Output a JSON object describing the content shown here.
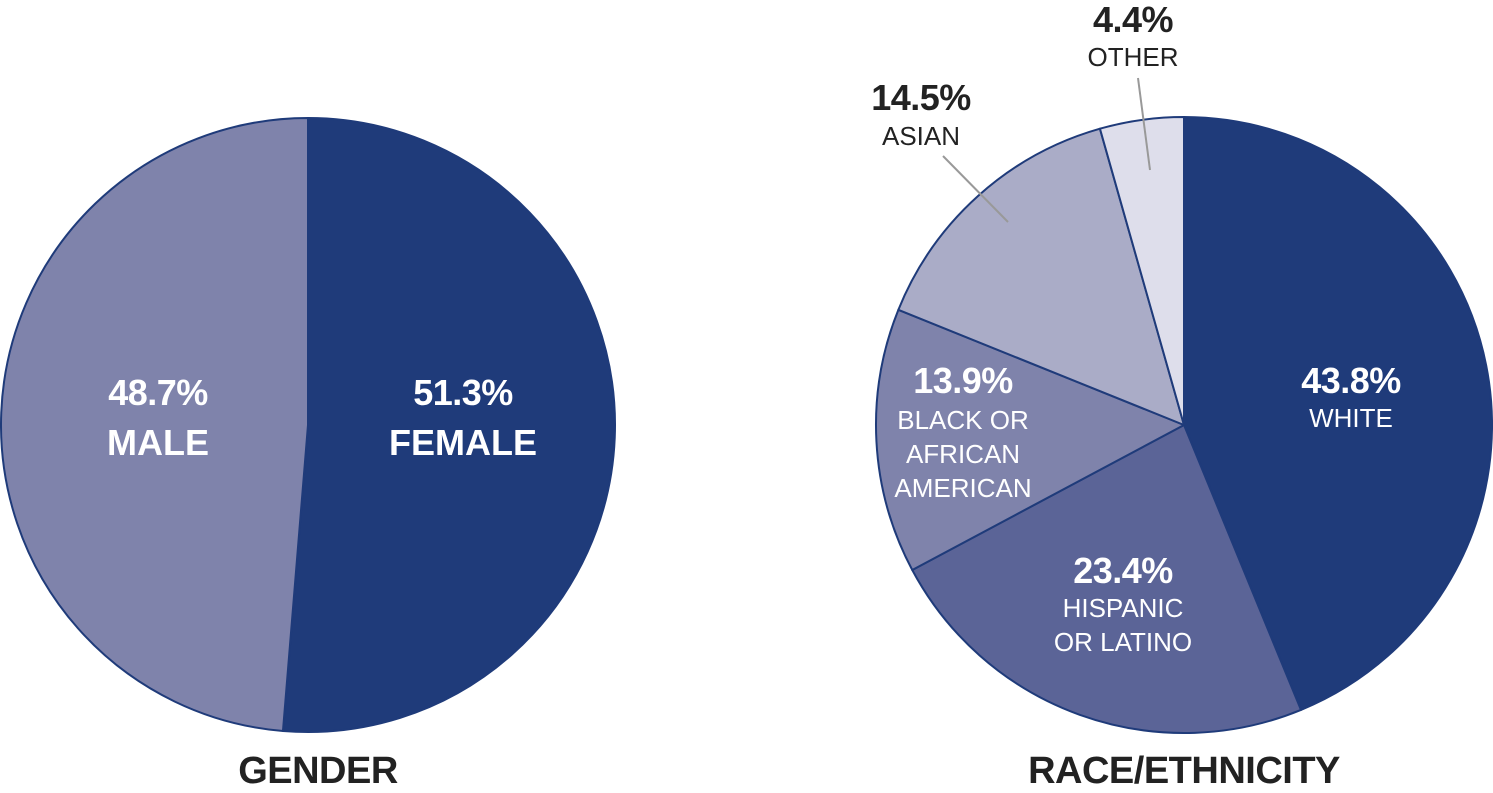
{
  "colors": {
    "edge": "#1f3b7a",
    "leader": "#999999",
    "text_light": "#ffffff",
    "text_dark": "#222222"
  },
  "chart_data": [
    {
      "type": "pie",
      "title": "GENDER",
      "start": "12 o'clock",
      "direction": "clockwise",
      "slices": [
        {
          "label": "FEMALE",
          "value": 51.3,
          "value_label": "51.3%",
          "color": "#1f3b7a",
          "text_color": "#ffffff"
        },
        {
          "label": "MALE",
          "value": 48.7,
          "value_label": "48.7%",
          "color": "#7f83ab",
          "text_color": "#ffffff"
        }
      ]
    },
    {
      "type": "pie",
      "title": "RACE/ETHNICITY",
      "start": "12 o'clock",
      "direction": "clockwise",
      "slices": [
        {
          "label": "WHITE",
          "value": 43.8,
          "value_label": "43.8%",
          "color": "#1f3b7a",
          "text_color": "#ffffff"
        },
        {
          "label": "HISPANIC OR LATINO",
          "value": 23.4,
          "value_label": "23.4%",
          "color": "#5b6497",
          "text_color": "#ffffff"
        },
        {
          "label": "BLACK OR AFRICAN AMERICAN",
          "value": 13.9,
          "value_label": "13.9%",
          "color": "#7f83ab",
          "text_color": "#ffffff"
        },
        {
          "label": "ASIAN",
          "value": 14.5,
          "value_label": "14.5%",
          "color": "#aaacc7",
          "text_color": "#222222"
        },
        {
          "label": "OTHER",
          "value": 4.4,
          "value_label": "4.4%",
          "color": "#dedeeb",
          "text_color": "#222222"
        }
      ]
    }
  ]
}
